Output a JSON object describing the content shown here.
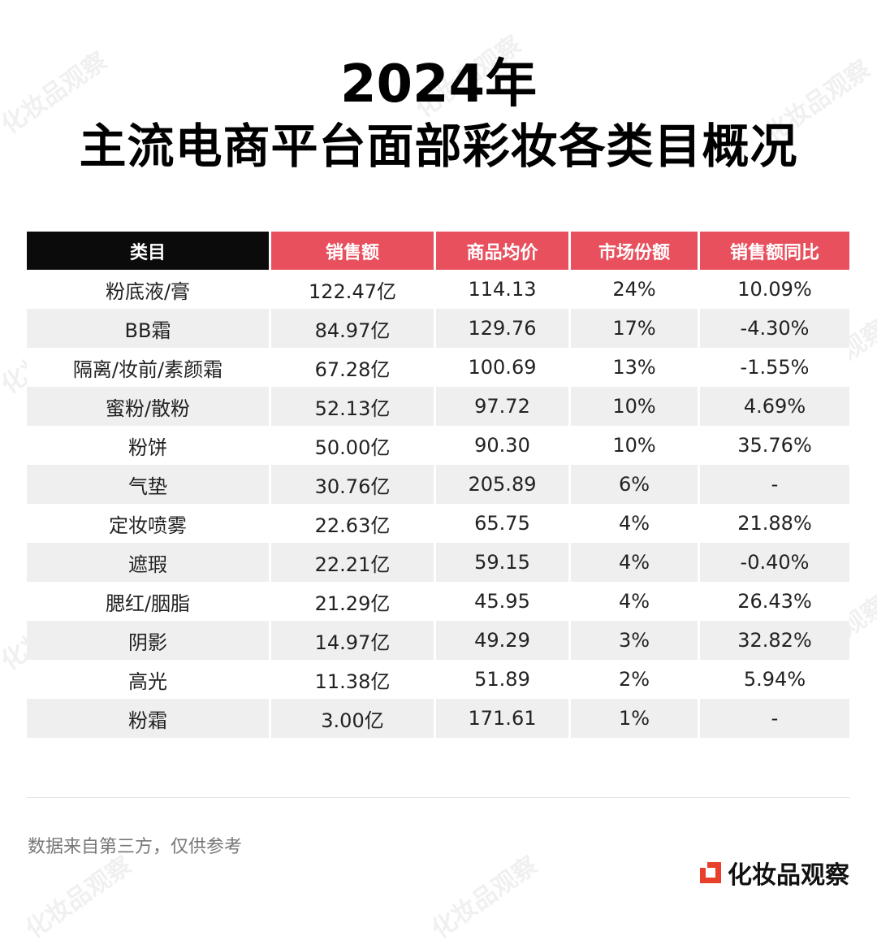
{
  "title": {
    "line1": "2024年",
    "line2": "主流电商平台面部彩妆各类目概况"
  },
  "table": {
    "headers": [
      "类目",
      "销售额",
      "商品均价",
      "市场份额",
      "销售额同比"
    ],
    "rows": [
      [
        "粉底液/膏",
        "122.47亿",
        "114.13",
        "24%",
        "10.09%"
      ],
      [
        "BB霜",
        "84.97亿",
        "129.76",
        "17%",
        "-4.30%"
      ],
      [
        "隔离/妆前/素颜霜",
        "67.28亿",
        "100.69",
        "13%",
        "-1.55%"
      ],
      [
        "蜜粉/散粉",
        "52.13亿",
        "97.72",
        "10%",
        "4.69%"
      ],
      [
        "粉饼",
        "50.00亿",
        "90.30",
        "10%",
        "35.76%"
      ],
      [
        "气垫",
        "30.76亿",
        "205.89",
        "6%",
        "-"
      ],
      [
        "定妆喷雾",
        "22.63亿",
        "65.75",
        "4%",
        "21.88%"
      ],
      [
        "遮瑕",
        "22.21亿",
        "59.15",
        "4%",
        "-0.40%"
      ],
      [
        "腮红/胭脂",
        "21.29亿",
        "45.95",
        "4%",
        "26.43%"
      ],
      [
        "阴影",
        "14.97亿",
        "49.29",
        "3%",
        "32.82%"
      ],
      [
        "高光",
        "11.38亿",
        "51.89",
        "2%",
        "5.94%"
      ],
      [
        "粉霜",
        "3.00亿",
        "171.61",
        "1%",
        "-"
      ]
    ]
  },
  "footnote": "数据来自第三方，仅供参考",
  "brand": {
    "name": "化妆品观察",
    "icon": "brand-logo-icon",
    "accent": "#e8402a"
  },
  "watermark": "化妆品观察",
  "colors": {
    "header_dark": "#0b0b0b",
    "header_red": "#e8505e",
    "row_shade": "#efefef"
  }
}
